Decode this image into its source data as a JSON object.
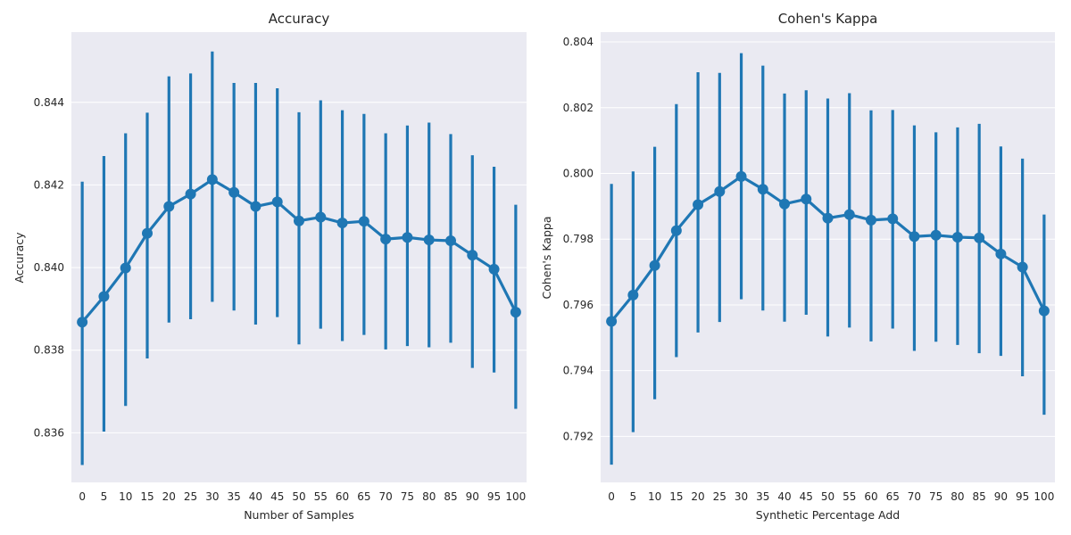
{
  "colors": {
    "panel_background": "#eaeaf2",
    "grid": "#ffffff",
    "series": "#1f77b4",
    "text": "#262626"
  },
  "chart_data": [
    {
      "type": "line",
      "style": "pointplot-with-error-bars",
      "title": "Accuracy",
      "xlabel": "Number of Samples",
      "ylabel": "Accuracy",
      "categories": [
        "0",
        "5",
        "10",
        "15",
        "20",
        "25",
        "30",
        "35",
        "40",
        "45",
        "50",
        "55",
        "60",
        "65",
        "70",
        "75",
        "80",
        "85",
        "90",
        "95",
        "100"
      ],
      "ylim": [
        0.8348,
        0.8457
      ],
      "yticks": [
        0.836,
        0.838,
        0.84,
        0.842,
        0.844
      ],
      "ytick_labels": [
        "0.836",
        "0.838",
        "0.840",
        "0.842",
        "0.844"
      ],
      "grid": true,
      "series": [
        {
          "values": [
            0.83868,
            0.8393,
            0.83999,
            0.84083,
            0.84148,
            0.84178,
            0.84213,
            0.84182,
            0.84148,
            0.84159,
            0.84113,
            0.84122,
            0.84108,
            0.84112,
            0.84069,
            0.84073,
            0.84067,
            0.84065,
            0.8403,
            0.83996,
            0.83892
          ],
          "ci_low": [
            0.83522,
            0.83603,
            0.83665,
            0.8378,
            0.83867,
            0.83875,
            0.83917,
            0.83896,
            0.83862,
            0.8388,
            0.83814,
            0.83852,
            0.83822,
            0.83837,
            0.83802,
            0.8381,
            0.83807,
            0.83818,
            0.83757,
            0.83746,
            0.83658
          ],
          "ci_high": [
            0.84208,
            0.8427,
            0.84325,
            0.84375,
            0.84463,
            0.8447,
            0.84523,
            0.84447,
            0.84447,
            0.84434,
            0.84376,
            0.84405,
            0.84381,
            0.84372,
            0.84325,
            0.84344,
            0.84351,
            0.84323,
            0.84272,
            0.84244,
            0.84152
          ]
        }
      ]
    },
    {
      "type": "line",
      "style": "pointplot-with-error-bars",
      "title": "Cohen's Kappa",
      "xlabel": "Synthetic Percentage Add",
      "ylabel": "Cohen's Kappa",
      "categories": [
        "0",
        "5",
        "10",
        "15",
        "20",
        "25",
        "30",
        "35",
        "40",
        "45",
        "50",
        "55",
        "60",
        "65",
        "70",
        "75",
        "80",
        "85",
        "90",
        "95",
        "100"
      ],
      "ylim": [
        0.7906,
        0.8043
      ],
      "yticks": [
        0.792,
        0.794,
        0.796,
        0.798,
        0.8,
        0.802,
        0.804
      ],
      "ytick_labels": [
        "0.792",
        "0.794",
        "0.796",
        "0.798",
        "0.800",
        "0.802",
        "0.804"
      ],
      "grid": true,
      "series": [
        {
          "values": [
            0.7955,
            0.7963,
            0.7972,
            0.79826,
            0.79905,
            0.79945,
            0.79991,
            0.79952,
            0.79907,
            0.79922,
            0.79864,
            0.79875,
            0.79858,
            0.79862,
            0.79808,
            0.79812,
            0.79806,
            0.79804,
            0.79755,
            0.79715,
            0.79582
          ],
          "ci_low": [
            0.79114,
            0.79213,
            0.79313,
            0.79441,
            0.79516,
            0.79548,
            0.79617,
            0.79583,
            0.79549,
            0.7957,
            0.79504,
            0.79531,
            0.79489,
            0.79528,
            0.7946,
            0.79488,
            0.79478,
            0.79453,
            0.79445,
            0.79383,
            0.79266
          ],
          "ci_high": [
            0.79968,
            0.80006,
            0.80081,
            0.80211,
            0.80308,
            0.80306,
            0.80366,
            0.80328,
            0.80243,
            0.80253,
            0.80228,
            0.80244,
            0.80192,
            0.80193,
            0.80146,
            0.80125,
            0.8014,
            0.80151,
            0.80082,
            0.80045,
            0.79875
          ]
        }
      ]
    }
  ]
}
